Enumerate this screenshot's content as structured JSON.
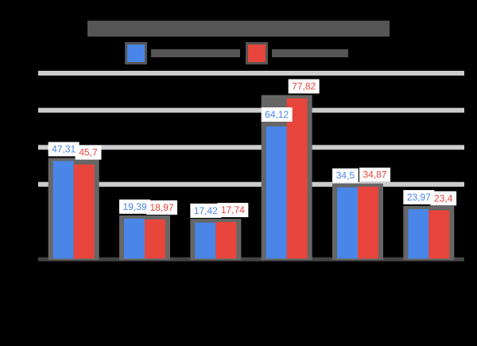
{
  "chart_data": {
    "type": "bar",
    "title": "",
    "xlabel": "",
    "ylabel": "",
    "categories": [
      "",
      "",
      "",
      "",
      "",
      ""
    ],
    "series": [
      {
        "name": "",
        "color": "#4a86e8",
        "values": [
          47.31,
          19.39,
          17.42,
          64.12,
          34.5,
          23.97
        ],
        "labels": [
          "47,31",
          "19,39",
          "17,42",
          "64,12",
          "34,5",
          "23,97"
        ]
      },
      {
        "name": "",
        "color": "#e8453c",
        "values": [
          45.7,
          18.97,
          17.74,
          77.82,
          34.87,
          23.4
        ],
        "labels": [
          "45,7",
          "18,97",
          "17,74",
          "77,82",
          "34,87",
          "23,4"
        ]
      }
    ],
    "ylim": [
      0,
      90
    ],
    "grid": true,
    "legend": "top-center"
  }
}
